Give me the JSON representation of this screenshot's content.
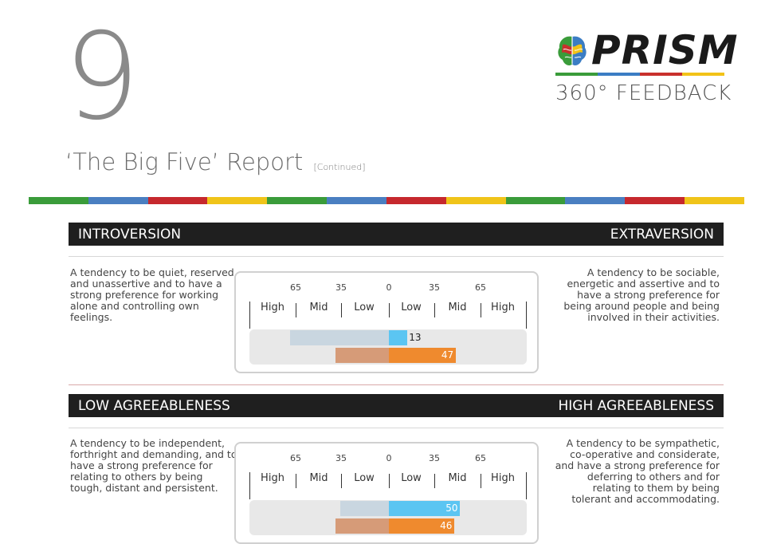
{
  "page": {
    "number": "9",
    "title": "‘The Big Five’ Report",
    "title_suffix": "[Continued]"
  },
  "logo": {
    "word": "PRISM",
    "subtitle": "360° FEEDBACK",
    "bar_colors": [
      "#3a9c3a",
      "#3b7dc4",
      "#c9302c",
      "#f2c318"
    ]
  },
  "stripe_colors": [
    "#3a9c3a",
    "#4a7fc1",
    "#c6282d",
    "#f0c419",
    "#3a9c3a",
    "#4a7fc1",
    "#c6282d",
    "#f0c419",
    "#3a9c3a",
    "#4a7fc1",
    "#c6282d",
    "#f0c419"
  ],
  "colors": {
    "bar_blue_light": "#c9d6e0",
    "bar_blue": "#5bc5f2",
    "bar_orange_light": "#d69b78",
    "bar_orange": "#ef8a2e"
  },
  "scale": {
    "tick_numbers": [
      "65",
      "35",
      "0",
      "35",
      "65"
    ],
    "bands": [
      "High",
      "Mid",
      "Low",
      "Low",
      "Mid",
      "High"
    ]
  },
  "sections": [
    {
      "left_title": "INTROVERSION",
      "right_title": "EXTRAVERSION",
      "left_desc": "A tendency to be quiet, reserved and unassertive and to have a strong preference for working alone and controlling own feelings.",
      "right_desc": "A tendency to be sociable, energetic and assertive and to have a strong preference for being around people and being involved in their activities.",
      "bars": [
        {
          "value": 13,
          "label": "13",
          "direction": "right",
          "ghost_extent": 65,
          "kind": "blue"
        },
        {
          "value": 47,
          "label": "47",
          "direction": "right",
          "ghost_extent": 35,
          "kind": "orange"
        }
      ]
    },
    {
      "left_title": "LOW AGREEABLENESS",
      "right_title": "HIGH AGREEABLENESS",
      "left_desc": "A tendency to be independent, forthright and demanding, and to have a strong preference for relating to others by being tough, distant and persistent.",
      "right_desc": "A tendency to be sympathetic, co-operative and considerate, and have a strong preference for deferring to others and for relating to them by being tolerant and accommodating.",
      "bars": [
        {
          "value": 50,
          "label": "50",
          "direction": "right",
          "ghost_extent": 32,
          "kind": "blue"
        },
        {
          "value": 46,
          "label": "46",
          "direction": "right",
          "ghost_extent": 35,
          "kind": "orange"
        }
      ]
    }
  ]
}
